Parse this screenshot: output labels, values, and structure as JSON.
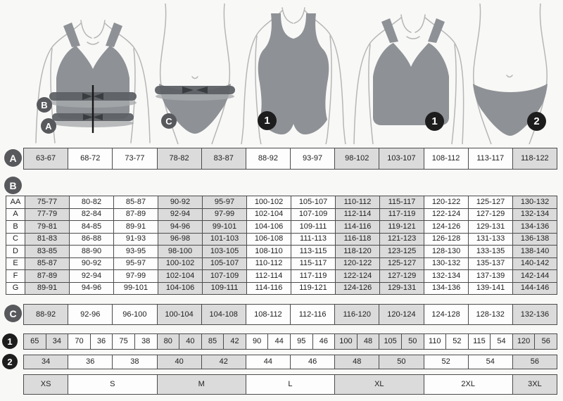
{
  "colors": {
    "background": "#f8f8f7",
    "cell_plain": "#fdfdfd",
    "cell_shaded": "#dbdbdb",
    "border": "#4b4b4b",
    "text": "#1e1e1e",
    "circle_gray": "#58595c",
    "circle_black": "#1d1d1d",
    "garment_gray": "#8e9195",
    "measure_band": "#5e6165"
  },
  "figures": {
    "bra_measure": {
      "icon": "bra-measurement-diagram",
      "markers": {
        "bust": "B",
        "underbust": "A"
      }
    },
    "briefs_measure": {
      "icon": "briefs-measurement-diagram",
      "markers": {
        "hips": "C"
      }
    },
    "swimsuit": {
      "icon": "one-piece-swimsuit",
      "markers": {
        "product": "1"
      }
    },
    "bra": {
      "icon": "bra",
      "markers": {
        "product": "1"
      }
    },
    "briefs": {
      "icon": "briefs",
      "markers": {
        "product": "2"
      }
    }
  },
  "chart_data": {
    "type": "table",
    "shaded_columns": [
      1,
      0,
      0,
      1,
      1,
      0,
      0,
      1,
      1,
      0,
      0,
      1
    ],
    "tables": {
      "row_a": {
        "label": "A",
        "cells": [
          "63-67",
          "68-72",
          "73-77",
          "78-82",
          "83-87",
          "88-92",
          "93-97",
          "98-102",
          "103-107",
          "108-112",
          "113-117",
          "118-122"
        ]
      },
      "section_b": {
        "label": "B",
        "row_headers": [
          "AA",
          "A",
          "B",
          "C",
          "D",
          "E",
          "F",
          "G"
        ],
        "rows": [
          [
            "75-77",
            "80-82",
            "85-87",
            "90-92",
            "95-97",
            "100-102",
            "105-107",
            "110-112",
            "115-117",
            "120-122",
            "125-127",
            "130-132"
          ],
          [
            "77-79",
            "82-84",
            "87-89",
            "92-94",
            "97-99",
            "102-104",
            "107-109",
            "112-114",
            "117-119",
            "122-124",
            "127-129",
            "132-134"
          ],
          [
            "79-81",
            "84-85",
            "89-91",
            "94-96",
            "99-101",
            "104-106",
            "109-111",
            "114-116",
            "119-121",
            "124-126",
            "129-131",
            "134-136"
          ],
          [
            "81-83",
            "86-88",
            "91-93",
            "96-98",
            "101-103",
            "106-108",
            "111-113",
            "116-118",
            "121-123",
            "126-128",
            "131-133",
            "136-138"
          ],
          [
            "83-85",
            "88-90",
            "93-95",
            "98-100",
            "103-105",
            "108-110",
            "113-115",
            "118-120",
            "123-125",
            "128-130",
            "133-135",
            "138-140"
          ],
          [
            "85-87",
            "90-92",
            "95-97",
            "100-102",
            "105-107",
            "110-112",
            "115-117",
            "120-122",
            "125-127",
            "130-132",
            "135-137",
            "140-142"
          ],
          [
            "87-89",
            "92-94",
            "97-99",
            "102-104",
            "107-109",
            "112-114",
            "117-119",
            "122-124",
            "127-129",
            "132-134",
            "137-139",
            "142-144"
          ],
          [
            "89-91",
            "94-96",
            "99-101",
            "104-106",
            "109-111",
            "114-116",
            "119-121",
            "124-126",
            "129-131",
            "134-136",
            "139-141",
            "144-146"
          ]
        ]
      },
      "row_c": {
        "label": "C",
        "cells": [
          "88-92",
          "92-96",
          "96-100",
          "100-104",
          "104-108",
          "108-112",
          "112-116",
          "116-120",
          "120-124",
          "124-128",
          "128-132",
          "132-136"
        ]
      },
      "row_1": {
        "label": "1",
        "pairs": [
          [
            "65",
            "34"
          ],
          [
            "70",
            "36"
          ],
          [
            "75",
            "38"
          ],
          [
            "80",
            "40"
          ],
          [
            "85",
            "42"
          ],
          [
            "90",
            "44"
          ],
          [
            "95",
            "46"
          ],
          [
            "100",
            "48"
          ],
          [
            "105",
            "50"
          ],
          [
            "110",
            "52"
          ],
          [
            "115",
            "54"
          ],
          [
            "120",
            "56"
          ]
        ]
      },
      "row_2": {
        "label": "2",
        "cells": [
          "34",
          "36",
          "38",
          "40",
          "42",
          "44",
          "46",
          "48",
          "50",
          "52",
          "54",
          "56"
        ]
      },
      "sizes": {
        "labels": [
          "XS",
          "S",
          "M",
          "L",
          "XL",
          "2XL",
          "3XL"
        ],
        "spans": [
          1,
          2,
          2,
          2,
          2,
          2,
          1
        ]
      }
    }
  }
}
